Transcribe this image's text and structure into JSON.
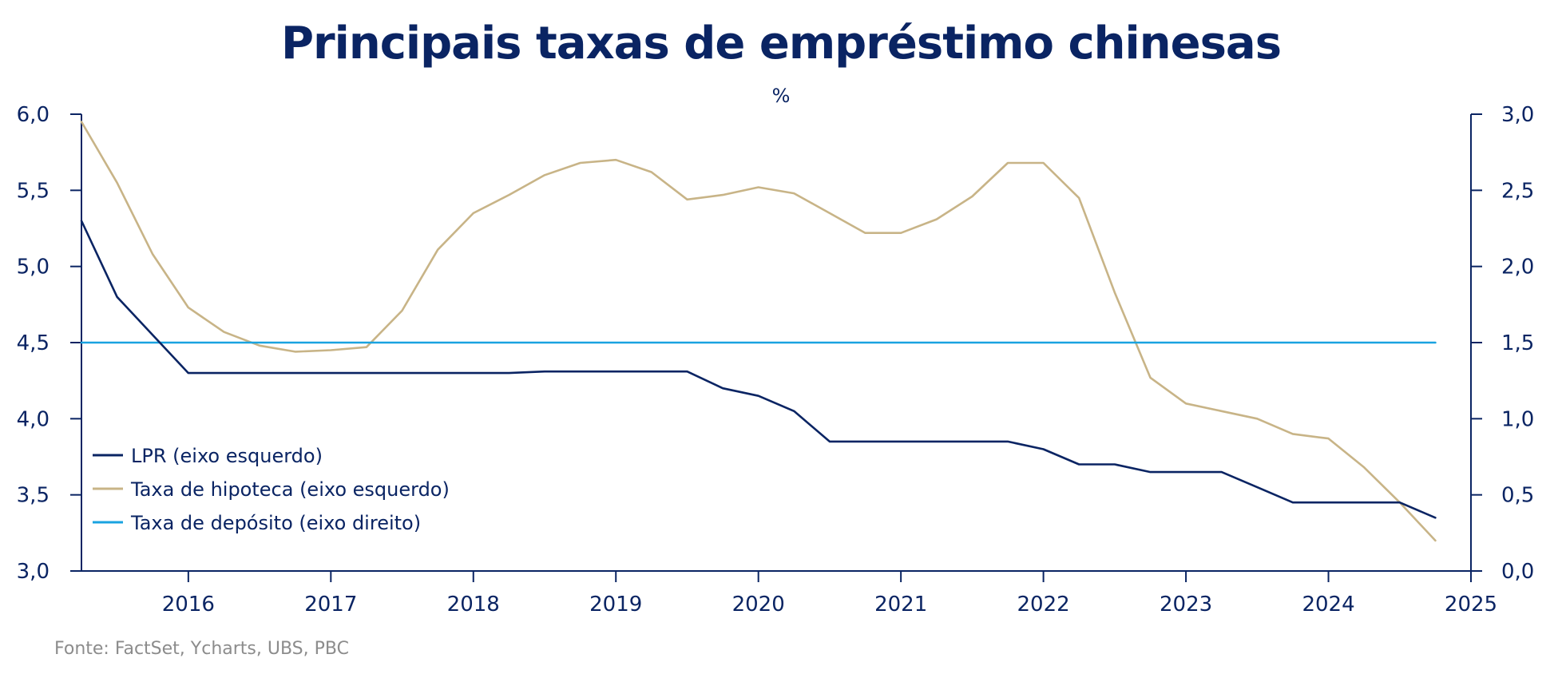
{
  "title": "Principais taxas de empréstimo chinesas",
  "subtitle": "%",
  "source": "Fonte: FactSet, Ycharts, UBS, PBC",
  "colors": {
    "title": "#0a2463",
    "lpr": "#0a2463",
    "mortgage": "#c8b487",
    "deposit": "#1aa3e0",
    "axis": "#0a2463",
    "source": "#8c8c8c"
  },
  "chart_data": {
    "type": "line",
    "title": "Principais taxas de empréstimo chinesas",
    "subtitle": "%",
    "x_range": [
      2015.25,
      2025
    ],
    "x_ticks": [
      "2016",
      "2017",
      "2018",
      "2019",
      "2020",
      "2021",
      "2022",
      "2023",
      "2024",
      "2025"
    ],
    "x_tick_values": [
      2016,
      2017,
      2018,
      2019,
      2020,
      2021,
      2022,
      2023,
      2024,
      2025
    ],
    "y_left": {
      "range": [
        3.0,
        6.0
      ],
      "ticks": [
        "3,0",
        "3,5",
        "4,0",
        "4,5",
        "5,0",
        "5,5",
        "6,0"
      ],
      "tick_values": [
        3.0,
        3.5,
        4.0,
        4.5,
        5.0,
        5.5,
        6.0
      ]
    },
    "y_right": {
      "range": [
        0.0,
        3.0
      ],
      "ticks": [
        "0,0",
        "0,5",
        "1,0",
        "1,5",
        "2,0",
        "2,5",
        "3,0"
      ],
      "tick_values": [
        0.0,
        0.5,
        1.0,
        1.5,
        2.0,
        2.5,
        3.0
      ]
    },
    "grid": false,
    "legend_position": "bottom-left",
    "series": [
      {
        "name": "LPR (eixo esquerdo)",
        "axis": "left",
        "color": "#0a2463",
        "x": [
          2015.25,
          2015.5,
          2015.75,
          2016.0,
          2016.25,
          2016.5,
          2016.75,
          2017.0,
          2017.25,
          2017.5,
          2017.75,
          2018.0,
          2018.25,
          2018.5,
          2018.75,
          2019.0,
          2019.25,
          2019.5,
          2019.75,
          2020.0,
          2020.25,
          2020.5,
          2020.75,
          2021.0,
          2021.25,
          2021.5,
          2021.75,
          2022.0,
          2022.25,
          2022.5,
          2022.75,
          2023.0,
          2023.25,
          2023.5,
          2023.75,
          2024.0,
          2024.25,
          2024.5,
          2024.75
        ],
        "values": [
          5.3,
          4.8,
          4.55,
          4.3,
          4.3,
          4.3,
          4.3,
          4.3,
          4.3,
          4.3,
          4.3,
          4.3,
          4.3,
          4.31,
          4.31,
          4.31,
          4.31,
          4.31,
          4.2,
          4.15,
          4.05,
          3.85,
          3.85,
          3.85,
          3.85,
          3.85,
          3.85,
          3.8,
          3.7,
          3.7,
          3.65,
          3.65,
          3.65,
          3.55,
          3.45,
          3.45,
          3.45,
          3.45,
          3.35
        ]
      },
      {
        "name": "Taxa de hipoteca (eixo esquerdo)",
        "axis": "left",
        "color": "#c8b487",
        "x": [
          2015.25,
          2015.5,
          2015.75,
          2016.0,
          2016.25,
          2016.5,
          2016.75,
          2017.0,
          2017.25,
          2017.5,
          2017.75,
          2018.0,
          2018.25,
          2018.5,
          2018.75,
          2019.0,
          2019.25,
          2019.5,
          2019.75,
          2020.0,
          2020.25,
          2020.5,
          2020.75,
          2021.0,
          2021.25,
          2021.5,
          2021.75,
          2022.0,
          2022.25,
          2022.5,
          2022.75,
          2023.0,
          2023.25,
          2023.5,
          2023.75,
          2024.0,
          2024.25,
          2024.5,
          2024.75
        ],
        "values": [
          5.95,
          5.55,
          5.08,
          4.73,
          4.57,
          4.48,
          4.44,
          4.45,
          4.47,
          4.71,
          5.11,
          5.35,
          5.47,
          5.6,
          5.68,
          5.7,
          5.62,
          5.44,
          5.47,
          5.52,
          5.48,
          5.35,
          5.22,
          5.22,
          5.31,
          5.46,
          5.68,
          5.68,
          5.45,
          4.83,
          4.27,
          4.1,
          4.05,
          4.0,
          3.9,
          3.87,
          3.68,
          3.45,
          3.2
        ]
      },
      {
        "name": "Taxa de depósito (eixo direito)",
        "axis": "right",
        "color": "#1aa3e0",
        "x": [
          2015.25,
          2024.75
        ],
        "values": [
          1.5,
          1.5
        ]
      }
    ]
  }
}
